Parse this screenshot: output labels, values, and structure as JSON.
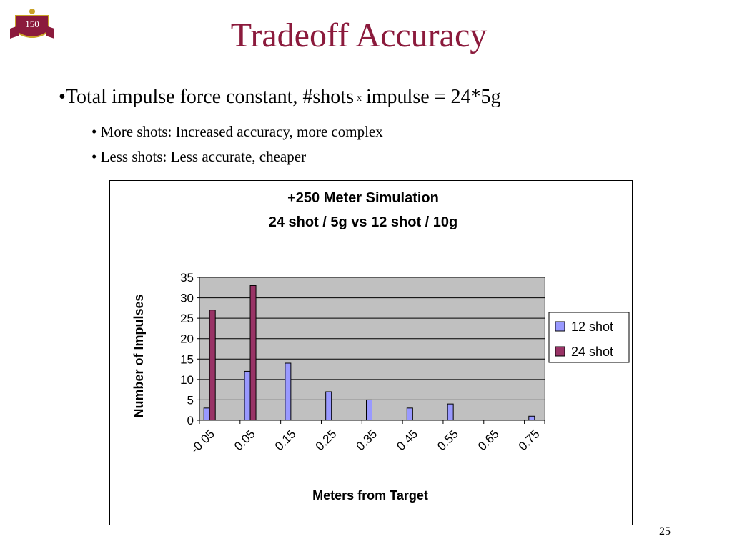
{
  "slide": {
    "title": "Tradeoff Accuracy",
    "bullet": {
      "prefix": "•Total impulse force constant, #shots",
      "times": "x",
      "suffix": "impulse = 24*5g"
    },
    "sub_bullets": [
      "• More shots: Increased accuracy, more complex",
      "• Less shots: Less accurate, cheaper"
    ],
    "page_number": "25",
    "logo": {
      "text": "150",
      "colors": {
        "maroon": "#8b1a3c",
        "gold": "#c9a227"
      }
    }
  },
  "colors": {
    "title": "#8b1a3c",
    "plot_area": "#c0c0c0",
    "series_12": "#9999ff",
    "series_24": "#993366"
  },
  "chart_data": {
    "type": "bar",
    "title": "+250 Meter Simulation",
    "subtitle": "24 shot / 5g vs 12 shot / 10g",
    "xlabel": "Meters from Target",
    "ylabel": "Number of Impulses",
    "categories": [
      "-0.05",
      "0.05",
      "0.15",
      "0.25",
      "0.35",
      "0.45",
      "0.55",
      "0.65",
      "0.75"
    ],
    "series": [
      {
        "name": "12 shot",
        "values": [
          3,
          12,
          14,
          7,
          5,
          3,
          4,
          0,
          1
        ]
      },
      {
        "name": "24 shot",
        "values": [
          27,
          33,
          0,
          0,
          0,
          0,
          0,
          0,
          0
        ]
      }
    ],
    "yticks": [
      "0",
      "5",
      "10",
      "15",
      "20",
      "25",
      "30",
      "35"
    ],
    "ylim": [
      0,
      35
    ],
    "grid": true,
    "legend": "right"
  }
}
